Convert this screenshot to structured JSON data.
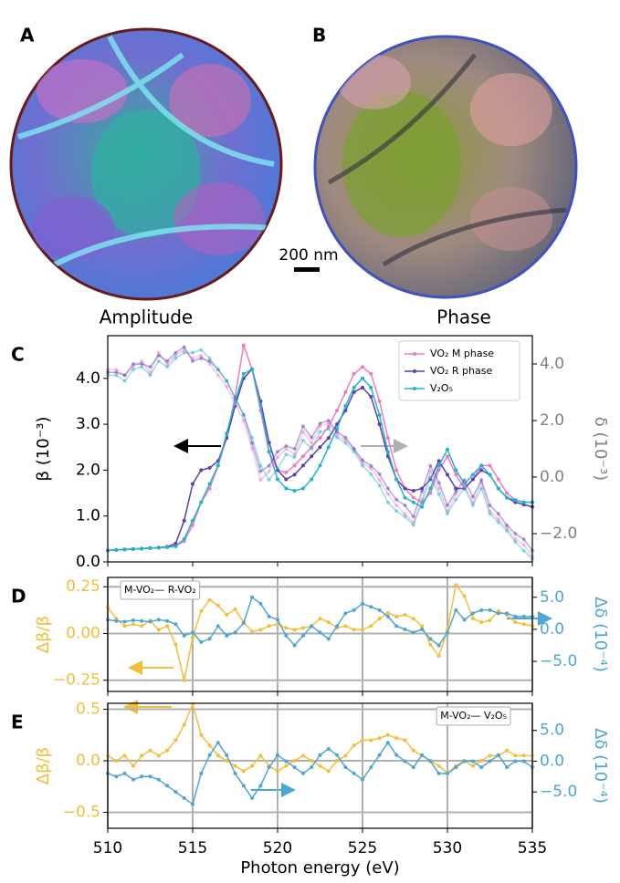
{
  "figure": {
    "panel_a": {
      "label": "A",
      "caption": "Amplitude"
    },
    "panel_b": {
      "label": "B",
      "caption": "Phase"
    },
    "scale_bar": "200 nm"
  },
  "chart_data": [
    {
      "type": "line",
      "label": "C",
      "ylabel": "β (10⁻³)",
      "y2label": "δ (10⁻³)",
      "ycolor": "#000000",
      "y2color": "#808080",
      "legend": "upper right",
      "grid": false,
      "x": [
        510,
        510.5,
        511,
        511.5,
        512,
        512.5,
        513,
        513.5,
        514,
        514.5,
        515,
        515.5,
        516,
        516.5,
        517,
        517.5,
        518,
        518.5,
        519,
        519.5,
        520,
        520.5,
        521,
        521.5,
        522,
        522.5,
        523,
        523.5,
        524,
        524.5,
        525,
        525.5,
        526,
        526.5,
        527,
        527.5,
        528,
        528.5,
        529,
        529.5,
        530,
        530.5,
        531,
        531.5,
        532,
        532.5,
        533,
        533.5,
        534,
        534.5,
        535
      ],
      "xlim": [
        510,
        535
      ],
      "xticks": [
        510,
        515,
        520,
        525,
        530,
        535
      ],
      "ylim": [
        0,
        4.93
      ],
      "yticks": [
        {
          "value": 0,
          "label": "0.0"
        },
        {
          "value": 1,
          "label": "1.0"
        },
        {
          "value": 2,
          "label": "2.0"
        },
        {
          "value": 3,
          "label": "3.0"
        },
        {
          "value": 4,
          "label": "4.0"
        }
      ],
      "y2lim": [
        -3,
        5
      ],
      "y2ticks": [
        {
          "value": -2,
          "label": "−2.0"
        },
        {
          "value": 0,
          "label": "0.0"
        },
        {
          "value": 2,
          "label": "2.0"
        },
        {
          "value": 4,
          "label": "4.0"
        }
      ],
      "series": [
        {
          "name": "VO₂ M phase",
          "color": "#f07cc0",
          "values": [
            0.25,
            0.26,
            0.27,
            0.28,
            0.29,
            0.3,
            0.31,
            0.32,
            0.35,
            0.45,
            0.8,
            1.3,
            1.6,
            2.1,
            2.7,
            3.6,
            4.72,
            4.2,
            3.3,
            2.4,
            2.0,
            1.95,
            2.1,
            2.3,
            2.5,
            2.7,
            2.95,
            3.3,
            3.7,
            4.1,
            4.25,
            4.1,
            3.5,
            2.7,
            2.0,
            1.6,
            1.4,
            1.3,
            1.5,
            2.0,
            2.3,
            1.9,
            1.6,
            1.8,
            2.1,
            2.1,
            1.8,
            1.5,
            1.35,
            1.3,
            1.3
          ]
        },
        {
          "name": "VO₂ R phase",
          "color": "#5b3fb8",
          "values": [
            0.25,
            0.26,
            0.27,
            0.28,
            0.29,
            0.3,
            0.31,
            0.33,
            0.4,
            0.9,
            1.7,
            2.0,
            2.05,
            2.2,
            2.7,
            3.4,
            4.0,
            4.2,
            3.5,
            2.6,
            2.0,
            1.8,
            1.9,
            2.1,
            2.3,
            2.5,
            2.7,
            3.0,
            3.3,
            3.7,
            3.8,
            3.6,
            3.0,
            2.3,
            1.8,
            1.6,
            1.55,
            1.6,
            1.8,
            2.2,
            1.9,
            1.6,
            1.6,
            1.8,
            2.0,
            1.9,
            1.6,
            1.4,
            1.3,
            1.25,
            1.2
          ]
        },
        {
          "name": "V₂O₅",
          "color": "#22b5c8",
          "values": [
            0.25,
            0.26,
            0.27,
            0.28,
            0.29,
            0.3,
            0.31,
            0.32,
            0.34,
            0.5,
            0.9,
            1.3,
            1.7,
            2.1,
            2.8,
            3.5,
            4.1,
            4.2,
            3.4,
            2.4,
            1.8,
            1.6,
            1.55,
            1.6,
            1.8,
            2.1,
            2.5,
            2.9,
            3.4,
            3.8,
            4.0,
            3.8,
            3.2,
            2.4,
            1.8,
            1.4,
            1.3,
            1.2,
            1.6,
            2.1,
            2.45,
            2.0,
            1.7,
            1.9,
            2.1,
            1.9,
            1.6,
            1.4,
            1.35,
            1.3,
            1.3
          ]
        },
        {
          "axis": "y2",
          "alpha": 0.45,
          "color": "#f07cc0",
          "values": [
            3.8,
            3.8,
            3.6,
            3.9,
            4.1,
            3.7,
            4.4,
            4.0,
            4.3,
            4.5,
            4.2,
            4.3,
            4.0,
            3.6,
            3.2,
            2.6,
            2.0,
            1.0,
            -0.1,
            0.2,
            0.7,
            1.0,
            0.8,
            1.6,
            1.2,
            1.8,
            1.9,
            1.5,
            1.3,
            1.0,
            0.5,
            0.3,
            -0.1,
            -0.6,
            -1.0,
            -1.3,
            -1.6,
            -0.8,
            0.2,
            -0.4,
            -1.2,
            -0.6,
            -0.3,
            -0.9,
            -0.2,
            -1.2,
            -1.5,
            -1.8,
            -2.2,
            -2.4,
            -2.8
          ]
        },
        {
          "axis": "y2",
          "alpha": 0.45,
          "color": "#5b3fb8",
          "values": [
            3.7,
            3.7,
            3.6,
            4.0,
            4.0,
            3.9,
            4.3,
            4.1,
            4.4,
            4.6,
            4.1,
            4.2,
            4.1,
            3.8,
            3.4,
            2.8,
            2.2,
            1.2,
            0.2,
            0.4,
            0.9,
            1.1,
            1.0,
            1.8,
            1.4,
            1.9,
            2.0,
            1.6,
            1.4,
            1.0,
            0.6,
            0.4,
            0.1,
            -0.4,
            -0.8,
            -1.0,
            -1.4,
            -0.5,
            0.4,
            -0.2,
            -1.0,
            -0.5,
            -0.1,
            -0.7,
            -0.1,
            -1.0,
            -1.3,
            -1.7,
            -2.0,
            -2.2,
            -2.6
          ]
        },
        {
          "axis": "y2",
          "alpha": 0.45,
          "color": "#22b5c8",
          "values": [
            3.6,
            3.6,
            3.4,
            3.8,
            3.9,
            3.6,
            4.1,
            3.9,
            4.2,
            4.4,
            4.4,
            4.5,
            4.2,
            3.8,
            3.4,
            2.8,
            2.2,
            1.4,
            0.4,
            -0.1,
            0.3,
            0.8,
            0.7,
            1.3,
            1.0,
            1.6,
            1.7,
            1.4,
            1.2,
            0.9,
            0.4,
            0.1,
            -0.3,
            -0.9,
            -1.2,
            -1.4,
            -1.7,
            -0.9,
            0.0,
            -0.6,
            -1.3,
            -0.8,
            -0.4,
            -1.0,
            -0.4,
            -1.3,
            -1.6,
            -1.9,
            -2.3,
            -2.6,
            -2.9
          ]
        }
      ]
    },
    {
      "type": "line",
      "label": "D",
      "ylabel": "Δβ/β",
      "y2label": "Δδ (10⁻⁴)",
      "ycolor": "#f3bf3a",
      "y2color": "#4ea6d2",
      "grid": true,
      "annotation": {
        "text": "M-VO₂— R-VO₂",
        "position": "upper left"
      },
      "x": [
        510,
        510.5,
        511,
        511.5,
        512,
        512.5,
        513,
        513.5,
        514,
        514.5,
        515,
        515.5,
        516,
        516.5,
        517,
        517.5,
        518,
        518.5,
        519,
        519.5,
        520,
        520.5,
        521,
        521.5,
        522,
        522.5,
        523,
        523.5,
        524,
        524.5,
        525,
        525.5,
        526,
        526.5,
        527,
        527.5,
        528,
        528.5,
        529,
        529.5,
        530,
        530.5,
        531,
        531.5,
        532,
        532.5,
        533,
        533.5,
        534,
        534.5,
        535
      ],
      "xlim": [
        510,
        535
      ],
      "xticks": [
        510,
        515,
        520,
        525,
        530,
        535
      ],
      "ylim": [
        -0.31,
        0.3
      ],
      "yticks": [
        {
          "value": -0.25,
          "label": "−0.25"
        },
        {
          "value": 0,
          "label": "0.00"
        },
        {
          "value": 0.25,
          "label": "0.25"
        }
      ],
      "y2lim": [
        -9.7,
        8.1
      ],
      "y2ticks": [
        {
          "value": -5,
          "label": "−5.0"
        },
        {
          "value": 0,
          "label": "0.0"
        },
        {
          "value": 5,
          "label": "5.0"
        }
      ],
      "series": [
        {
          "color": "#f3bf3a",
          "values": [
            0.14,
            0.08,
            0.04,
            0.05,
            0.04,
            0.07,
            0.02,
            0.04,
            -0.06,
            -0.25,
            -0.02,
            0.12,
            0.18,
            0.15,
            0.1,
            0.13,
            0.06,
            0.01,
            0.02,
            0.04,
            0.05,
            0.03,
            0.02,
            0.03,
            0.04,
            0.08,
            0.06,
            0.03,
            0.04,
            0.02,
            0.02,
            0.04,
            0.08,
            0.11,
            0.09,
            0.1,
            0.08,
            0.04,
            -0.06,
            -0.12,
            0.02,
            0.26,
            0.2,
            0.08,
            0.06,
            0.07,
            0.12,
            0.1,
            0.06,
            0.05,
            0.04
          ]
        },
        {
          "axis": "y2",
          "color": "#4ea6d2",
          "values": [
            1.5,
            1.3,
            1.2,
            1.4,
            1.3,
            1.2,
            1.5,
            1.3,
            0.8,
            -1.0,
            -0.5,
            -2.0,
            -1.5,
            0.5,
            -1.0,
            -0.5,
            1.0,
            5.0,
            4.0,
            2.0,
            1.5,
            -1.0,
            -2.5,
            -1.0,
            0.5,
            -0.5,
            -1.5,
            0.5,
            2.5,
            3.0,
            4.0,
            3.5,
            3.0,
            2.0,
            0.5,
            0.0,
            -0.5,
            0.0,
            -1.5,
            -2.5,
            -0.5,
            3.0,
            1.5,
            2.5,
            3.0,
            3.0,
            2.5,
            2.5,
            2.0,
            2.0,
            2.0
          ]
        }
      ]
    },
    {
      "type": "line",
      "label": "E",
      "ylabel": "Δβ/β",
      "y2label": "Δδ (10⁻⁴)",
      "ycolor": "#f3bf3a",
      "y2color": "#4ea6d2",
      "grid": true,
      "xlabel": "Photon energy (eV)",
      "annotation": {
        "text": "M-VO₂— V₂O₅",
        "position": "upper right"
      },
      "x": [
        510,
        510.5,
        511,
        511.5,
        512,
        512.5,
        513,
        513.5,
        514,
        514.5,
        515,
        515.5,
        516,
        516.5,
        517,
        517.5,
        518,
        518.5,
        519,
        519.5,
        520,
        520.5,
        521,
        521.5,
        522,
        522.5,
        523,
        523.5,
        524,
        524.5,
        525,
        525.5,
        526,
        526.5,
        527,
        527.5,
        528,
        528.5,
        529,
        529.5,
        530,
        530.5,
        531,
        531.5,
        532,
        532.5,
        533,
        533.5,
        534,
        534.5,
        535
      ],
      "xlim": [
        510,
        535
      ],
      "xticks": [
        510,
        515,
        520,
        525,
        530,
        535
      ],
      "ylim": [
        -0.655,
        0.558
      ],
      "yticks": [
        {
          "value": -0.5,
          "label": "−0.5"
        },
        {
          "value": 0,
          "label": "0.0"
        },
        {
          "value": 0.5,
          "label": "0.5"
        }
      ],
      "y2lim": [
        -10.9,
        9.4
      ],
      "y2ticks": [
        {
          "value": -5,
          "label": "−5.0"
        },
        {
          "value": 0,
          "label": "0.0"
        },
        {
          "value": 5,
          "label": "5.0"
        }
      ],
      "series": [
        {
          "color": "#f3bf3a",
          "values": [
            0.05,
            0.0,
            0.05,
            -0.05,
            0.05,
            0.1,
            0.05,
            0.1,
            0.2,
            0.35,
            0.55,
            0.25,
            0.15,
            0.05,
            0.0,
            -0.05,
            -0.1,
            -0.05,
            0.05,
            -0.05,
            -0.1,
            -0.05,
            0.0,
            0.05,
            0.0,
            -0.05,
            -0.1,
            0.0,
            0.05,
            0.15,
            0.2,
            0.2,
            0.22,
            0.25,
            0.22,
            0.2,
            0.1,
            0.05,
            0.0,
            -0.05,
            -0.12,
            -0.05,
            0.0,
            -0.05,
            0.0,
            0.05,
            0.05,
            0.1,
            0.05,
            0.05,
            0.05
          ]
        },
        {
          "axis": "y2",
          "color": "#4ea6d2",
          "values": [
            -2,
            -2.5,
            -2,
            -3,
            -2.5,
            -2.5,
            -3,
            -4,
            -5,
            -6,
            -7,
            -2,
            1,
            3,
            1,
            -2,
            -4,
            -6,
            -4,
            -1,
            1,
            0,
            -1,
            -2,
            -1,
            1,
            2,
            1,
            -1,
            -2,
            -3,
            -1,
            1,
            3,
            1,
            0,
            -1,
            1,
            0,
            -2,
            -2,
            -1,
            0,
            0,
            -1,
            0,
            1,
            -1,
            0,
            0,
            -1
          ]
        }
      ]
    }
  ]
}
